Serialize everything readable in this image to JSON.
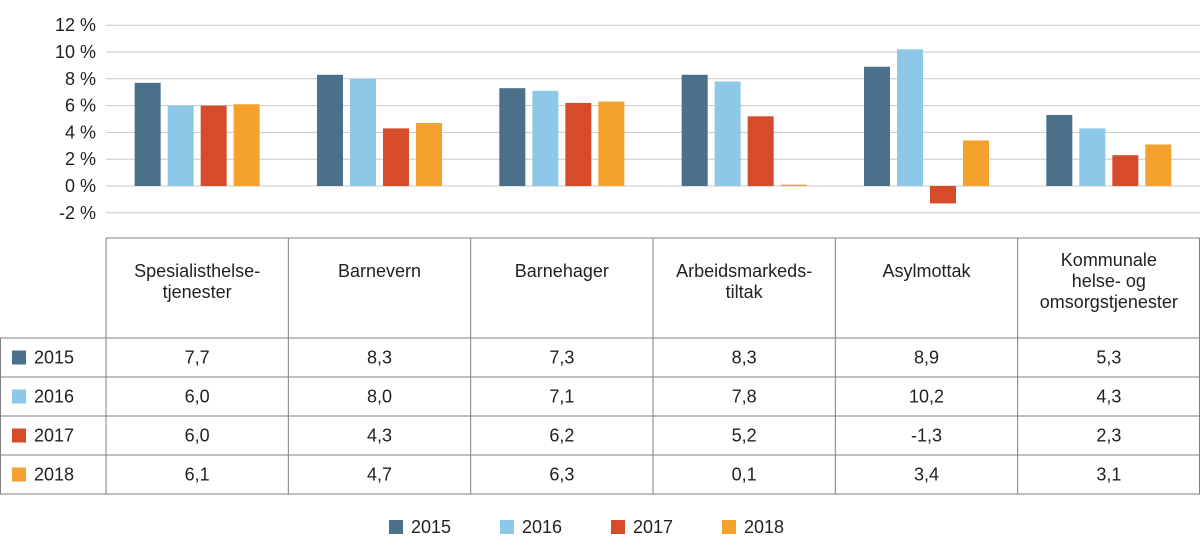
{
  "chart_data": {
    "type": "bar",
    "title": "",
    "xlabel": "",
    "ylabel": "",
    "ylim": [
      -2,
      12
    ],
    "yticks": [
      12,
      10,
      8,
      6,
      4,
      2,
      0,
      -2
    ],
    "ytick_labels": [
      "12 %",
      "10 %",
      "8 %",
      "6 %",
      "4 %",
      "2 %",
      "0 %",
      "-2 %"
    ],
    "grid": true,
    "legend_position": "bottom",
    "categories": [
      [
        "Spesialisthelse-",
        "tjenester"
      ],
      [
        "Barnevern"
      ],
      [
        "Barnehager"
      ],
      [
        "Arbeidsmarkeds-",
        "tiltak"
      ],
      [
        "Asylmottak"
      ],
      [
        "Kommunale",
        "helse- og",
        "omsorgstjenester"
      ]
    ],
    "series": [
      {
        "name": "2015",
        "color": "#4b7089",
        "values": [
          7.7,
          8.3,
          7.3,
          8.3,
          8.9,
          5.3
        ],
        "labels": [
          "7,7",
          "8,3",
          "7,3",
          "8,3",
          "8,9",
          "5,3"
        ]
      },
      {
        "name": "2016",
        "color": "#8ec8e8",
        "values": [
          6.0,
          8.0,
          7.1,
          7.8,
          10.2,
          4.3
        ],
        "labels": [
          "6,0",
          "8,0",
          "7,1",
          "7,8",
          "10,2",
          "4,3"
        ]
      },
      {
        "name": "2017",
        "color": "#d64b2a",
        "values": [
          6.0,
          4.3,
          6.2,
          5.2,
          -1.3,
          2.3
        ],
        "labels": [
          "6,0",
          "4,3",
          "6,2",
          "5,2",
          "-1,3",
          "2,3"
        ]
      },
      {
        "name": "2018",
        "color": "#f4a12d",
        "values": [
          6.1,
          4.7,
          6.3,
          0.1,
          3.4,
          3.1
        ],
        "labels": [
          "6,1",
          "4,7",
          "6,3",
          "0,1",
          "3,4",
          "3,1"
        ]
      }
    ]
  }
}
